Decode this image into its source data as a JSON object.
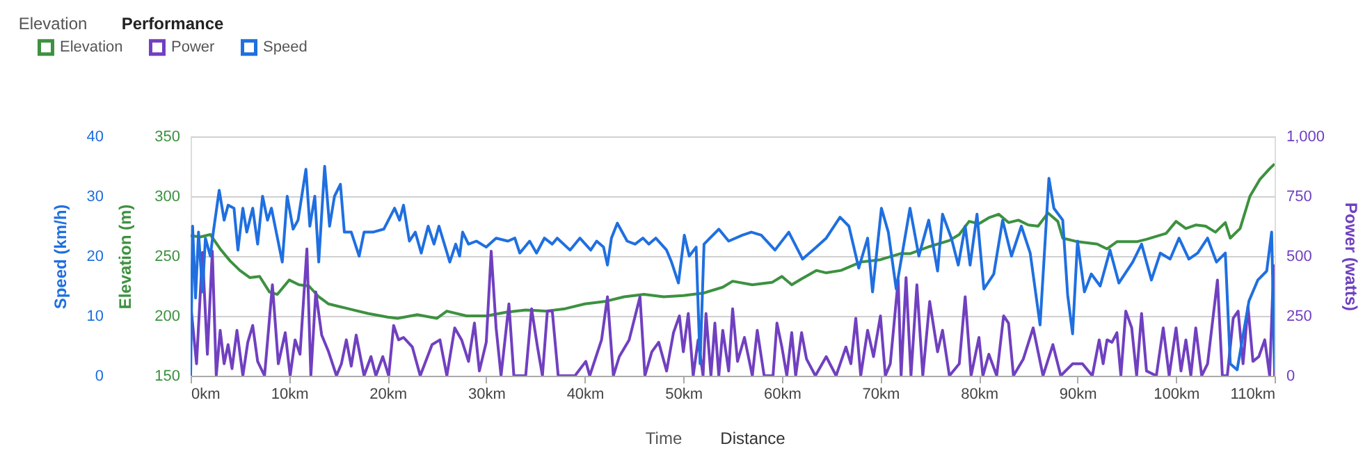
{
  "chart_data": {
    "type": "line",
    "xlim": [
      0,
      110
    ],
    "xticks": [
      {
        "value": 0,
        "label": "0km"
      },
      {
        "value": 10,
        "label": "10km"
      },
      {
        "value": 20,
        "label": "20km"
      },
      {
        "value": 30,
        "label": "30km"
      },
      {
        "value": 40,
        "label": "40km"
      },
      {
        "value": 50,
        "label": "50km"
      },
      {
        "value": 60,
        "label": "60km"
      },
      {
        "value": 70,
        "label": "70km"
      },
      {
        "value": 80,
        "label": "80km"
      },
      {
        "value": 90,
        "label": "90km"
      },
      {
        "value": 100,
        "label": "100km"
      },
      {
        "value": 110,
        "label": "110km"
      }
    ],
    "ylabel": "Elevation (m)",
    "ylim": [
      150,
      350
    ],
    "yticks": [
      150,
      200,
      250,
      300,
      350
    ],
    "y2label": "Power (watts)",
    "y2lim": [
      0,
      1000
    ],
    "y2ticks": [
      0,
      250,
      500,
      750,
      {
        "value": 1000,
        "label": "1,000"
      }
    ],
    "y3label": "Speed (km/h)",
    "y3lim": [
      0,
      40
    ],
    "y3ticks": [
      0,
      10,
      20,
      30,
      40
    ],
    "grid": "y",
    "legend": "top left",
    "annotations": [
      "Elevation",
      "Performance",
      "Time",
      "Distance"
    ],
    "series": [
      {
        "name": "Elevation",
        "color": "#3d9140",
        "axis": "y",
        "x": [
          0,
          1,
          2,
          3,
          4,
          5,
          6,
          7,
          8,
          8.8,
          10,
          11,
          12,
          13,
          14,
          15,
          16,
          18,
          20,
          21,
          23,
          25,
          26,
          28,
          30,
          32,
          34,
          36,
          38,
          40,
          42,
          44,
          46,
          48,
          50,
          52,
          54,
          55,
          57,
          59,
          60,
          61,
          62,
          63.5,
          64.5,
          66,
          68,
          70,
          72,
          73,
          75,
          77,
          78,
          79,
          80,
          81,
          82,
          83,
          84,
          85,
          86,
          87,
          88,
          88.5,
          90,
          92,
          93,
          94,
          96,
          97,
          99,
          100,
          101,
          102,
          103,
          104,
          105,
          105.5,
          106.5,
          107.5,
          108.5,
          109.5,
          110
        ],
        "values": [
          267,
          266,
          268,
          256,
          246,
          238,
          232,
          233,
          220,
          218,
          230,
          226,
          225,
          216,
          210,
          208,
          206,
          202,
          199,
          198,
          201,
          198,
          204,
          200,
          200,
          203,
          205,
          204,
          206,
          210,
          212,
          216,
          218,
          216,
          217,
          219,
          224,
          229,
          226,
          228,
          233,
          226,
          231,
          238,
          236,
          238,
          245,
          247,
          252,
          252,
          258,
          263,
          268,
          279,
          277,
          282,
          285,
          278,
          280,
          276,
          275,
          286,
          279,
          265,
          262,
          260,
          256,
          262,
          262,
          264,
          269,
          279,
          273,
          276,
          275,
          270,
          278,
          265,
          273,
          300,
          314,
          323,
          327
        ]
      },
      {
        "name": "Power",
        "color": "#7040c0",
        "axis": "y2",
        "x": [
          0,
          0.6,
          1.2,
          1.7,
          2.2,
          2.6,
          3,
          3.4,
          3.8,
          4.2,
          4.7,
          5.3,
          5.8,
          6.3,
          6.8,
          7.5,
          8.3,
          8.9,
          9.6,
          10.1,
          10.6,
          11.1,
          11.8,
          12.2,
          12.7,
          13.3,
          14,
          14.8,
          15.3,
          15.8,
          16.3,
          16.8,
          17.6,
          18.3,
          18.8,
          19.5,
          20.1,
          20.6,
          21.1,
          21.6,
          22.5,
          23.3,
          24.5,
          25.3,
          26,
          26.8,
          27.5,
          28.2,
          28.8,
          29.3,
          30,
          30.5,
          31,
          31.5,
          32.3,
          32.8,
          34,
          34.6,
          35.2,
          35.7,
          36.2,
          36.7,
          37.3,
          39,
          40.1,
          40.5,
          41.7,
          42.3,
          42.9,
          43.5,
          44.5,
          45.6,
          46.1,
          46.8,
          47.5,
          48.3,
          49,
          49.6,
          50,
          50.5,
          51,
          51.5,
          52,
          52.3,
          52.8,
          53.2,
          53.6,
          54,
          54.6,
          55,
          55.5,
          56.2,
          57,
          57.5,
          58.2,
          59.1,
          59.5,
          60,
          60.5,
          61,
          61.4,
          62,
          62.5,
          63.4,
          64.5,
          65.5,
          66.5,
          67,
          67.5,
          68,
          68.7,
          69.3,
          70,
          70.5,
          71,
          71.8,
          72.1,
          72.6,
          73.1,
          73.7,
          74.3,
          75,
          75.8,
          76.3,
          77,
          78,
          78.6,
          79.2,
          80,
          80.4,
          81,
          81.8,
          82.5,
          83,
          83.5,
          84.5,
          85.5,
          86.5,
          87.5,
          88.3,
          89.5,
          90.5,
          91.5,
          92.2,
          92.6,
          93,
          93.5,
          94,
          94.4,
          94.9,
          95.5,
          96,
          96.5,
          97,
          98,
          98.7,
          99.3,
          100,
          100.5,
          101,
          101.5,
          102,
          102.6,
          103.2,
          104.2,
          104.7,
          105.2,
          105.8,
          106.3,
          106.8,
          107.3,
          107.8,
          108.4,
          109,
          109.5,
          109.9,
          110
        ],
        "values": [
          300,
          50,
          515,
          90,
          520,
          0,
          190,
          50,
          130,
          30,
          190,
          0,
          140,
          210,
          60,
          0,
          380,
          50,
          180,
          0,
          150,
          90,
          530,
          0,
          350,
          170,
          100,
          0,
          50,
          150,
          40,
          170,
          0,
          80,
          0,
          80,
          0,
          210,
          150,
          160,
          120,
          0,
          130,
          150,
          0,
          200,
          150,
          60,
          220,
          20,
          140,
          520,
          200,
          0,
          300,
          0,
          0,
          280,
          120,
          0,
          270,
          270,
          0,
          0,
          60,
          0,
          150,
          330,
          0,
          80,
          150,
          330,
          0,
          100,
          140,
          20,
          180,
          250,
          100,
          260,
          0,
          150,
          0,
          260,
          0,
          220,
          0,
          190,
          20,
          280,
          60,
          160,
          0,
          190,
          0,
          0,
          220,
          120,
          0,
          180,
          0,
          180,
          70,
          0,
          80,
          0,
          120,
          50,
          240,
          0,
          190,
          80,
          250,
          0,
          50,
          400,
          0,
          410,
          0,
          380,
          0,
          310,
          100,
          190,
          0,
          50,
          330,
          0,
          160,
          0,
          90,
          0,
          250,
          220,
          0,
          70,
          200,
          0,
          130,
          0,
          50,
          50,
          0,
          150,
          50,
          150,
          140,
          180,
          0,
          270,
          200,
          0,
          260,
          20,
          0,
          200,
          0,
          200,
          20,
          150,
          0,
          200,
          0,
          50,
          400,
          0,
          0,
          240,
          270,
          50,
          290,
          60,
          80,
          150,
          0,
          460,
          0
        ]
      },
      {
        "name": "Speed",
        "color": "#1f6fe0",
        "axis": "y3",
        "x": [
          0,
          0.2,
          0.5,
          0.8,
          1.2,
          1.5,
          2,
          2.3,
          2.9,
          3.4,
          3.8,
          4.4,
          4.8,
          5.3,
          5.7,
          6.3,
          6.8,
          7.3,
          7.8,
          8.2,
          9.3,
          9.8,
          10.4,
          10.9,
          11.7,
          12.1,
          12.6,
          13,
          13.6,
          14.1,
          14.6,
          15.2,
          15.6,
          16.3,
          17.1,
          17.6,
          18.5,
          19.6,
          20.7,
          21.2,
          21.6,
          22.2,
          22.8,
          23.4,
          24.1,
          24.7,
          25.2,
          26.3,
          26.9,
          27.3,
          27.6,
          28.2,
          29,
          30,
          31,
          32.2,
          32.9,
          33.4,
          34.4,
          35.1,
          35.9,
          36.7,
          37.2,
          38.5,
          39.5,
          40.6,
          41.2,
          41.9,
          42.3,
          42.7,
          43.3,
          44.3,
          45.1,
          45.9,
          46.5,
          47.2,
          48.3,
          48.8,
          49.5,
          50.1,
          50.6,
          51.3,
          51.7,
          52.1,
          53.6,
          54.6,
          56,
          56.9,
          57.9,
          59.3,
          60.7,
          62.1,
          63.5,
          64.5,
          65.9,
          66.8,
          67.8,
          68.7,
          69.2,
          70.1,
          70.8,
          71.6,
          73,
          73.9,
          74.9,
          75.8,
          76.3,
          77.2,
          77.9,
          78.6,
          79.1,
          79.8,
          80.5,
          81.5,
          82.4,
          83.3,
          84.3,
          85.2,
          86.2,
          87.1,
          87.6,
          88.5,
          89,
          89.5,
          90,
          90.7,
          91.4,
          92.3,
          93.3,
          94.2,
          95.6,
          96.5,
          97.5,
          98.4,
          99.4,
          100.3,
          101.3,
          102.2,
          103.2,
          104.1,
          105,
          105.5,
          106.2,
          107.4,
          108.3,
          109.2,
          109.7,
          110
        ],
        "values": [
          0,
          25,
          13,
          24,
          14,
          23,
          20,
          24,
          31,
          26,
          28.5,
          28,
          21,
          28,
          24,
          28,
          22,
          30,
          26,
          28,
          19,
          30,
          24.5,
          26,
          34.5,
          25,
          30,
          19,
          35,
          25,
          30,
          32,
          24,
          24,
          20,
          24,
          24,
          24.5,
          28,
          26,
          28.5,
          22.5,
          24,
          20.5,
          25,
          22,
          25,
          19,
          22,
          20,
          24,
          22,
          22.5,
          21.5,
          23,
          22.5,
          23,
          20.5,
          22.5,
          20.5,
          23,
          22,
          23,
          21,
          23,
          21,
          22.5,
          21.5,
          18.5,
          23,
          25.5,
          22.5,
          22,
          23,
          22,
          23,
          21,
          19,
          15.5,
          23.5,
          20,
          21.5,
          2,
          22,
          24.5,
          22.5,
          23.5,
          24,
          23.5,
          21,
          24,
          19.5,
          21.5,
          23,
          26.5,
          25,
          18,
          23,
          14,
          28,
          24,
          14.5,
          28,
          20,
          26,
          17.5,
          27,
          23,
          18.5,
          25,
          18.5,
          27,
          14.5,
          17,
          26,
          20,
          25,
          20.5,
          8.5,
          33,
          28,
          26,
          13.5,
          7,
          22.5,
          14,
          17,
          15,
          21,
          15.5,
          19,
          22,
          16,
          20.5,
          19.5,
          23,
          19.5,
          20.5,
          23,
          19,
          20.5,
          2,
          1,
          12.5,
          16,
          17.5,
          24,
          1
        ]
      }
    ]
  }
}
